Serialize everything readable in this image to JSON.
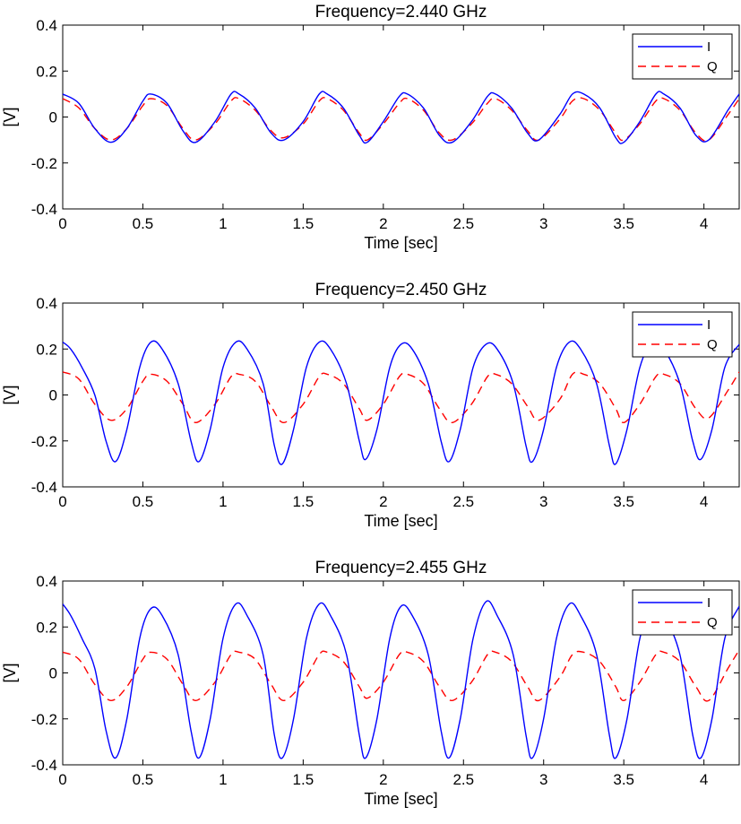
{
  "chart_data": [
    {
      "type": "line",
      "title": "Frequency=2.440 GHz",
      "xlabel": "Time [sec]",
      "ylabel": "[V]",
      "xlim": [
        0,
        4.22
      ],
      "ylim": [
        -0.4,
        0.4
      ],
      "xticks": [
        0,
        0.5,
        1,
        1.5,
        2,
        2.5,
        3,
        3.5,
        4
      ],
      "xtick_labels": [
        "0",
        "0.5",
        "1",
        "1.5",
        "2",
        "2.5",
        "3",
        "3.5",
        "4"
      ],
      "yticks": [
        -0.4,
        -0.2,
        0,
        0.2,
        0.4
      ],
      "ytick_labels": [
        "-0.4",
        "-0.2",
        "0",
        "0.2",
        "0.4"
      ],
      "grid": false,
      "legend_position": "top-right",
      "series": [
        {
          "name": "I",
          "color": "#0000ff",
          "style": "solid",
          "x": [
            0,
            0.1,
            0.2,
            0.3,
            0.4,
            0.5,
            0.55,
            0.65,
            0.75,
            0.83,
            0.95,
            1.05,
            1.1,
            1.2,
            1.3,
            1.38,
            1.5,
            1.6,
            1.65,
            1.75,
            1.85,
            1.9,
            2.0,
            2.1,
            2.15,
            2.25,
            2.35,
            2.43,
            2.55,
            2.65,
            2.7,
            2.8,
            2.9,
            2.97,
            3.1,
            3.18,
            3.25,
            3.35,
            3.45,
            3.5,
            3.6,
            3.7,
            3.75,
            3.85,
            3.95,
            4.03,
            4.15,
            4.22
          ],
          "y": [
            0.1,
            0.06,
            -0.05,
            -0.11,
            -0.05,
            0.07,
            0.1,
            0.06,
            -0.06,
            -0.11,
            -0.02,
            0.1,
            0.1,
            0.04,
            -0.07,
            -0.1,
            -0.02,
            0.1,
            0.1,
            0.04,
            -0.08,
            -0.11,
            -0.02,
            0.09,
            0.1,
            0.04,
            -0.08,
            -0.11,
            -0.02,
            0.09,
            0.1,
            0.04,
            -0.07,
            -0.1,
            0.01,
            0.1,
            0.1,
            0.04,
            -0.09,
            -0.11,
            -0.02,
            0.1,
            0.1,
            0.04,
            -0.08,
            -0.1,
            0.03,
            0.1
          ]
        },
        {
          "name": "Q",
          "color": "#ff0000",
          "style": "dashed",
          "x": [
            0,
            0.1,
            0.2,
            0.3,
            0.4,
            0.5,
            0.55,
            0.65,
            0.75,
            0.83,
            0.95,
            1.05,
            1.1,
            1.2,
            1.3,
            1.38,
            1.5,
            1.6,
            1.65,
            1.75,
            1.85,
            1.9,
            2.0,
            2.1,
            2.15,
            2.25,
            2.35,
            2.43,
            2.55,
            2.65,
            2.7,
            2.8,
            2.9,
            2.97,
            3.1,
            3.18,
            3.25,
            3.35,
            3.45,
            3.5,
            3.6,
            3.7,
            3.75,
            3.85,
            3.95,
            4.03,
            4.15,
            4.22
          ],
          "y": [
            0.08,
            0.04,
            -0.05,
            -0.1,
            -0.05,
            0.05,
            0.08,
            0.05,
            -0.05,
            -0.1,
            -0.03,
            0.07,
            0.08,
            0.03,
            -0.06,
            -0.09,
            -0.03,
            0.07,
            0.08,
            0.03,
            -0.07,
            -0.1,
            -0.03,
            0.06,
            0.08,
            0.03,
            -0.07,
            -0.1,
            -0.03,
            0.06,
            0.08,
            0.03,
            -0.06,
            -0.1,
            -0.01,
            0.07,
            0.08,
            0.03,
            -0.07,
            -0.1,
            -0.03,
            0.07,
            0.08,
            0.03,
            -0.07,
            -0.1,
            0.01,
            0.08
          ]
        }
      ]
    },
    {
      "type": "line",
      "title": "Frequency=2.450 GHz",
      "xlabel": "Time [sec]",
      "ylabel": "[V]",
      "xlim": [
        0,
        4.22
      ],
      "ylim": [
        -0.4,
        0.4
      ],
      "xticks": [
        0,
        0.5,
        1,
        1.5,
        2,
        2.5,
        3,
        3.5,
        4
      ],
      "xtick_labels": [
        "0",
        "0.5",
        "1",
        "1.5",
        "2",
        "2.5",
        "3",
        "3.5",
        "4"
      ],
      "yticks": [
        -0.4,
        -0.2,
        0,
        0.2,
        0.4
      ],
      "ytick_labels": [
        "-0.4",
        "-0.2",
        "0",
        "0.2",
        "0.4"
      ],
      "grid": false,
      "legend_position": "top-right",
      "series": [
        {
          "name": "I",
          "color": "#0000ff",
          "style": "solid",
          "x": [
            0,
            0.05,
            0.12,
            0.2,
            0.27,
            0.33,
            0.4,
            0.48,
            0.55,
            0.62,
            0.72,
            0.8,
            0.85,
            0.92,
            1.0,
            1.08,
            1.15,
            1.25,
            1.32,
            1.37,
            1.44,
            1.52,
            1.6,
            1.67,
            1.77,
            1.85,
            1.89,
            1.96,
            2.04,
            2.11,
            2.18,
            2.28,
            2.36,
            2.41,
            2.48,
            2.56,
            2.64,
            2.71,
            2.81,
            2.89,
            2.93,
            3.0,
            3.08,
            3.16,
            3.23,
            3.33,
            3.41,
            3.45,
            3.52,
            3.6,
            3.68,
            3.75,
            3.85,
            3.93,
            3.98,
            4.05,
            4.13,
            4.22
          ],
          "y": [
            0.23,
            0.2,
            0.12,
            0.0,
            -0.2,
            -0.29,
            -0.15,
            0.12,
            0.23,
            0.2,
            0.05,
            -0.2,
            -0.29,
            -0.15,
            0.12,
            0.23,
            0.2,
            0.05,
            -0.22,
            -0.3,
            -0.15,
            0.12,
            0.23,
            0.2,
            0.05,
            -0.2,
            -0.28,
            -0.15,
            0.12,
            0.22,
            0.2,
            0.05,
            -0.2,
            -0.29,
            -0.15,
            0.12,
            0.22,
            0.2,
            0.05,
            -0.22,
            -0.29,
            -0.15,
            0.12,
            0.23,
            0.2,
            0.05,
            -0.22,
            -0.3,
            -0.15,
            0.12,
            0.23,
            0.2,
            0.05,
            -0.2,
            -0.28,
            -0.15,
            0.12,
            0.22
          ]
        },
        {
          "name": "Q",
          "color": "#ff0000",
          "style": "dashed",
          "x": [
            0,
            0.1,
            0.2,
            0.3,
            0.4,
            0.5,
            0.55,
            0.65,
            0.75,
            0.83,
            0.95,
            1.05,
            1.1,
            1.2,
            1.3,
            1.38,
            1.5,
            1.6,
            1.65,
            1.75,
            1.85,
            1.9,
            2.0,
            2.1,
            2.15,
            2.25,
            2.35,
            2.43,
            2.55,
            2.65,
            2.7,
            2.8,
            2.9,
            2.97,
            3.1,
            3.18,
            3.25,
            3.35,
            3.45,
            3.5,
            3.6,
            3.7,
            3.75,
            3.85,
            3.95,
            4.03,
            4.15,
            4.22
          ],
          "y": [
            0.1,
            0.07,
            -0.04,
            -0.11,
            -0.06,
            0.06,
            0.09,
            0.06,
            -0.04,
            -0.12,
            -0.04,
            0.08,
            0.09,
            0.06,
            -0.05,
            -0.12,
            -0.04,
            0.08,
            0.09,
            0.05,
            -0.06,
            -0.11,
            -0.04,
            0.08,
            0.09,
            0.05,
            -0.06,
            -0.12,
            -0.04,
            0.08,
            0.09,
            0.05,
            -0.05,
            -0.11,
            -0.02,
            0.09,
            0.09,
            0.05,
            -0.06,
            -0.12,
            -0.04,
            0.08,
            0.09,
            0.05,
            -0.06,
            -0.1,
            0.02,
            0.1
          ]
        }
      ]
    },
    {
      "type": "line",
      "title": "Frequency=2.455 GHz",
      "xlabel": "Time [sec]",
      "ylabel": "[V]",
      "xlim": [
        0,
        4.22
      ],
      "ylim": [
        -0.4,
        0.4
      ],
      "xticks": [
        0,
        0.5,
        1,
        1.5,
        2,
        2.5,
        3,
        3.5,
        4
      ],
      "xtick_labels": [
        "0",
        "0.5",
        "1",
        "1.5",
        "2",
        "2.5",
        "3",
        "3.5",
        "4"
      ],
      "yticks": [
        -0.4,
        -0.2,
        0,
        0.2,
        0.4
      ],
      "ytick_labels": [
        "-0.4",
        "-0.2",
        "0",
        "0.2",
        "0.4"
      ],
      "grid": false,
      "legend_position": "top-right",
      "series": [
        {
          "name": "I",
          "color": "#0000ff",
          "style": "solid",
          "x": [
            0,
            0.05,
            0.12,
            0.2,
            0.27,
            0.33,
            0.4,
            0.48,
            0.55,
            0.62,
            0.72,
            0.8,
            0.85,
            0.92,
            1.0,
            1.08,
            1.15,
            1.25,
            1.32,
            1.37,
            1.44,
            1.52,
            1.6,
            1.67,
            1.77,
            1.85,
            1.89,
            1.96,
            2.04,
            2.11,
            2.18,
            2.28,
            2.36,
            2.41,
            2.48,
            2.56,
            2.64,
            2.71,
            2.81,
            2.89,
            2.93,
            3.0,
            3.08,
            3.16,
            3.23,
            3.33,
            3.41,
            3.45,
            3.52,
            3.6,
            3.68,
            3.75,
            3.85,
            3.93,
            3.98,
            4.05,
            4.13,
            4.22
          ],
          "y": [
            0.3,
            0.25,
            0.15,
            0.02,
            -0.25,
            -0.37,
            -0.2,
            0.15,
            0.28,
            0.25,
            0.08,
            -0.25,
            -0.37,
            -0.2,
            0.15,
            0.3,
            0.25,
            0.08,
            -0.27,
            -0.37,
            -0.2,
            0.15,
            0.3,
            0.25,
            0.08,
            -0.27,
            -0.37,
            -0.2,
            0.15,
            0.29,
            0.25,
            0.08,
            -0.25,
            -0.37,
            -0.2,
            0.15,
            0.31,
            0.25,
            0.08,
            -0.27,
            -0.37,
            -0.2,
            0.15,
            0.3,
            0.25,
            0.08,
            -0.27,
            -0.37,
            -0.2,
            0.15,
            0.3,
            0.25,
            0.08,
            -0.27,
            -0.37,
            -0.2,
            0.15,
            0.29
          ]
        },
        {
          "name": "Q",
          "color": "#ff0000",
          "style": "dashed",
          "x": [
            0,
            0.1,
            0.2,
            0.3,
            0.4,
            0.5,
            0.55,
            0.65,
            0.75,
            0.83,
            0.95,
            1.05,
            1.1,
            1.2,
            1.3,
            1.38,
            1.5,
            1.6,
            1.65,
            1.75,
            1.85,
            1.9,
            2.0,
            2.1,
            2.15,
            2.25,
            2.35,
            2.43,
            2.55,
            2.65,
            2.7,
            2.8,
            2.9,
            2.97,
            3.1,
            3.18,
            3.25,
            3.35,
            3.45,
            3.5,
            3.6,
            3.7,
            3.75,
            3.85,
            3.95,
            4.03,
            4.15,
            4.22
          ],
          "y": [
            0.09,
            0.06,
            -0.05,
            -0.12,
            -0.06,
            0.06,
            0.09,
            0.06,
            -0.05,
            -0.12,
            -0.04,
            0.08,
            0.09,
            0.06,
            -0.05,
            -0.12,
            -0.04,
            0.08,
            0.09,
            0.05,
            -0.06,
            -0.11,
            -0.04,
            0.08,
            0.09,
            0.05,
            -0.06,
            -0.12,
            -0.04,
            0.08,
            0.09,
            0.05,
            -0.06,
            -0.12,
            -0.02,
            0.08,
            0.09,
            0.05,
            -0.06,
            -0.12,
            -0.04,
            0.08,
            0.09,
            0.05,
            -0.06,
            -0.12,
            0.02,
            0.1
          ]
        }
      ]
    }
  ]
}
